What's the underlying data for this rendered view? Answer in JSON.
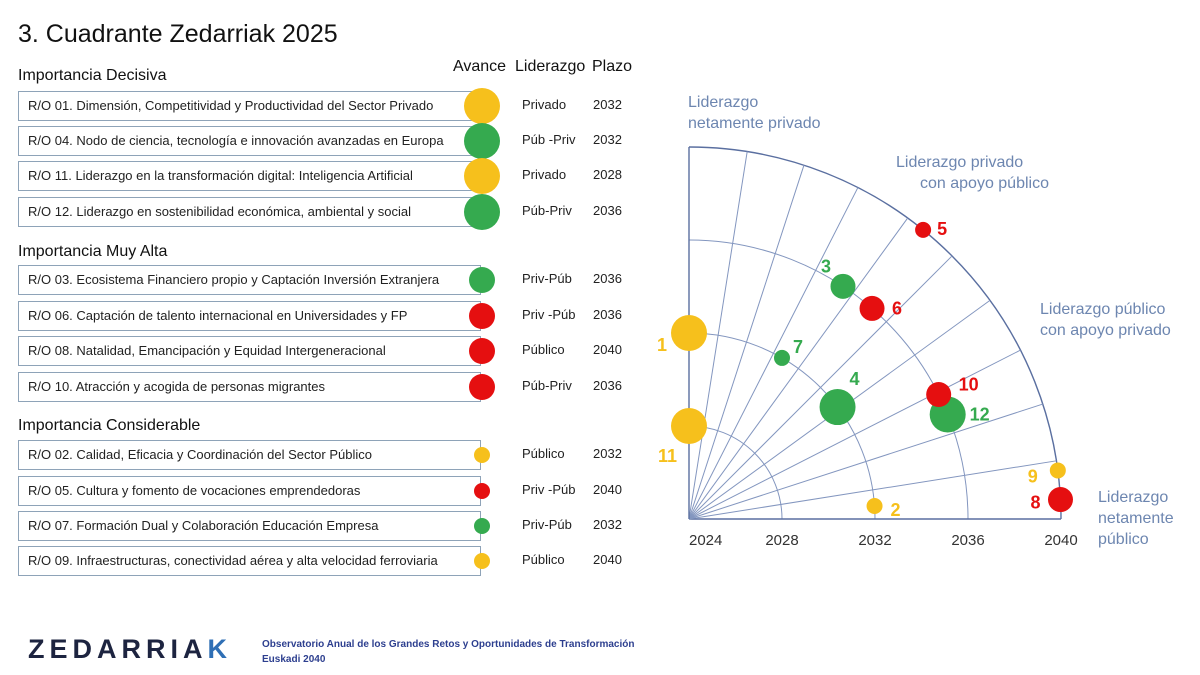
{
  "page": {
    "title": "3. Cuadrante Zedarriak 2025"
  },
  "columns": {
    "avance": "Avance",
    "liderazgo": "Liderazgo",
    "plazo": "Plazo"
  },
  "sections": [
    {
      "label": "Importancia Decisiva"
    },
    {
      "label": "Importancia Muy Alta"
    },
    {
      "label": "Importancia Considerable"
    }
  ],
  "colors": {
    "yellow": "#f6c01c",
    "green": "#35aa4f",
    "red": "#e50f10",
    "grid": "#8396bf",
    "label": "#6d86b0"
  },
  "rows": [
    {
      "section": 0,
      "text": "R/O 01. Dimensión, Competitividad y Productividad del Sector Privado",
      "avance": "yellow",
      "size": "large",
      "liderazgo": "Privado",
      "plazo": "2032"
    },
    {
      "section": 0,
      "text": "R/O 04. Nodo de ciencia, tecnología e innovación avanzadas en Europa",
      "avance": "green",
      "size": "large",
      "liderazgo": "Púb -Priv",
      "plazo": "2032"
    },
    {
      "section": 0,
      "text": "R/O 11. Liderazgo en la transformación digital: Inteligencia Artificial",
      "avance": "yellow",
      "size": "large",
      "liderazgo": "Privado",
      "plazo": "2028"
    },
    {
      "section": 0,
      "text": "R/O 12. Liderazgo en sostenibilidad económica, ambiental y social",
      "avance": "green",
      "size": "large",
      "liderazgo": "Púb-Priv",
      "plazo": "2036"
    },
    {
      "section": 1,
      "text": "R/O 03. Ecosistema Financiero propio y Captación Inversión Extranjera",
      "avance": "green",
      "size": "medium",
      "liderazgo": "Priv-Púb",
      "plazo": "2036"
    },
    {
      "section": 1,
      "text": "R/O 06. Captación de talento internacional en Universidades y FP",
      "avance": "red",
      "size": "medium",
      "liderazgo": "Priv -Púb",
      "plazo": "2036"
    },
    {
      "section": 1,
      "text": "R/O 08. Natalidad, Emancipación y Equidad Intergeneracional",
      "avance": "red",
      "size": "medium",
      "liderazgo": "Público",
      "plazo": "2040"
    },
    {
      "section": 1,
      "text": "R/O 10. Atracción y acogida de personas migrantes",
      "avance": "red",
      "size": "medium",
      "liderazgo": "Púb-Priv",
      "plazo": "2036"
    },
    {
      "section": 2,
      "text": "R/O 02. Calidad, Eficacia y Coordinación del Sector Público",
      "avance": "yellow",
      "size": "small",
      "liderazgo": "Público",
      "plazo": "2032"
    },
    {
      "section": 2,
      "text": "R/O 05. Cultura y fomento de vocaciones emprendedoras",
      "avance": "red",
      "size": "small",
      "liderazgo": "Priv -Púb",
      "plazo": "2040"
    },
    {
      "section": 2,
      "text": "R/O 07. Formación Dual y Colaboración Educación Empresa",
      "avance": "green",
      "size": "small",
      "liderazgo": "Priv-Púb",
      "plazo": "2032"
    },
    {
      "section": 2,
      "text": "R/O 09. Infraestructuras, conectividad aérea y alta velocidad ferroviaria",
      "avance": "yellow",
      "size": "small",
      "liderazgo": "Público",
      "plazo": "2040"
    }
  ],
  "chart_data": {
    "type": "scatter",
    "radial_ticks": [
      "2024",
      "2028",
      "2032",
      "2036",
      "2040"
    ],
    "angle_labels": [
      {
        "text": [
          "Liderazgo",
          "netamente privado"
        ]
      },
      {
        "text": [
          "Liderazgo privado",
          "con apoyo público"
        ]
      },
      {
        "text": [
          "Liderazgo público",
          "con apoyo privado"
        ]
      },
      {
        "text": [
          "Liderazgo",
          "netamente",
          "público"
        ]
      }
    ],
    "points": [
      {
        "label": "1",
        "year": 2032,
        "angle_deg": 90,
        "color": "yellow",
        "size": "large"
      },
      {
        "label": "11",
        "year": 2028,
        "angle_deg": 90,
        "color": "yellow",
        "size": "large"
      },
      {
        "label": "3",
        "year": 2036,
        "angle_deg": 56.5,
        "color": "green",
        "size": "medium"
      },
      {
        "label": "4",
        "year": 2032,
        "angle_deg": 37,
        "color": "green",
        "size": "large"
      },
      {
        "label": "12",
        "year": 2036,
        "angle_deg": 22,
        "color": "green",
        "size": "large"
      },
      {
        "label": "7",
        "year": 2032,
        "angle_deg": 60,
        "color": "green",
        "size": "small"
      },
      {
        "label": "5",
        "year": 2040,
        "angle_deg": 51,
        "color": "red",
        "size": "small"
      },
      {
        "label": "6",
        "year": 2036,
        "angle_deg": 49,
        "color": "red",
        "size": "medium"
      },
      {
        "label": "10",
        "year": 2036,
        "angle_deg": 26.5,
        "color": "red",
        "size": "medium"
      },
      {
        "label": "8",
        "year": 2040,
        "angle_deg": 3,
        "color": "red",
        "size": "medium"
      },
      {
        "label": "9",
        "year": 2040,
        "angle_deg": 7.5,
        "color": "yellow",
        "size": "small"
      },
      {
        "label": "2",
        "year": 2032,
        "angle_deg": 4,
        "color": "yellow",
        "size": "small"
      }
    ]
  },
  "footer": {
    "logo_main": "ZEDARRIA",
    "logo_accent": "K",
    "line1": "Observatorio Anual de los Grandes Retos y Oportunidades de Transformación",
    "line2": "Euskadi 2040"
  }
}
